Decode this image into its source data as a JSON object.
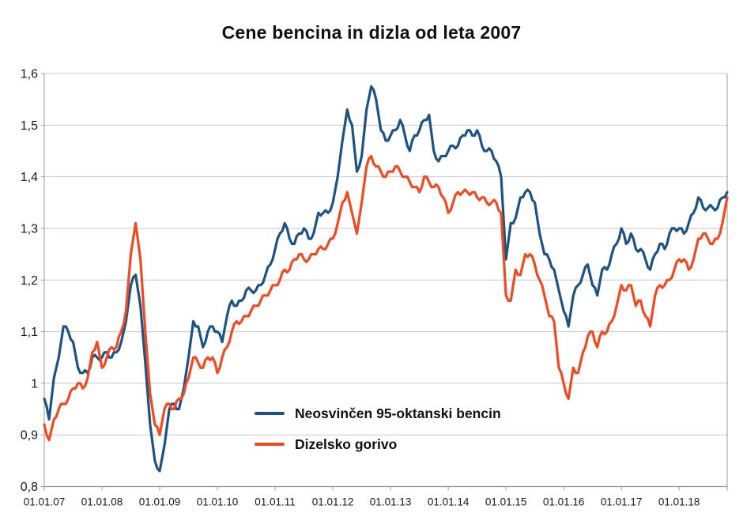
{
  "page": {
    "background": "#ffffff"
  },
  "chart_data": {
    "type": "line",
    "title": "Cene bencina in dizla od leta 2007",
    "xlabel": "",
    "ylabel": "",
    "ylim": [
      0.8,
      1.6
    ],
    "grid": true,
    "decimal_separator": ",",
    "x_start": "2007-01",
    "x_end": "2018-11",
    "x_interval": "month",
    "x_tick_labels": [
      "01.01.07",
      "01.01.08",
      "01.01.09",
      "01.01.10",
      "01.01.11",
      "01.01.12",
      "01.01.13",
      "01.01.14",
      "01.01.15",
      "01.01.16",
      "01.01.17",
      "01.01.18"
    ],
    "y_tick_labels": [
      "0,8",
      "0,9",
      "1",
      "1,1",
      "1,2",
      "1,3",
      "1,4",
      "1,5",
      "1,6"
    ],
    "y_tick_values": [
      0.8,
      0.9,
      1.0,
      1.1,
      1.2,
      1.3,
      1.4,
      1.5,
      1.6
    ],
    "legend_position": "inside-bottom-left",
    "colors": {
      "grid": "#c9c9c9",
      "axis": "#9a9a9a",
      "text": "#1a1a1a"
    },
    "series": [
      {
        "name": "Neosvinčen 95-oktanski bencin",
        "color": "#1d5384",
        "values": [
          0.97,
          0.93,
          1.01,
          1.05,
          1.11,
          1.1,
          1.08,
          1.03,
          1.02,
          1.02,
          1.05,
          1.05,
          1.05,
          1.06,
          1.05,
          1.06,
          1.08,
          1.12,
          1.19,
          1.21,
          1.15,
          1.04,
          0.92,
          0.85,
          0.83,
          0.88,
          0.95,
          0.96,
          0.95,
          0.99,
          1.05,
          1.12,
          1.11,
          1.07,
          1.1,
          1.11,
          1.1,
          1.08,
          1.13,
          1.16,
          1.15,
          1.16,
          1.18,
          1.18,
          1.18,
          1.19,
          1.21,
          1.23,
          1.26,
          1.29,
          1.31,
          1.28,
          1.27,
          1.29,
          1.3,
          1.28,
          1.29,
          1.33,
          1.33,
          1.33,
          1.35,
          1.4,
          1.47,
          1.53,
          1.5,
          1.41,
          1.44,
          1.53,
          1.575,
          1.55,
          1.49,
          1.47,
          1.48,
          1.49,
          1.51,
          1.48,
          1.45,
          1.48,
          1.49,
          1.51,
          1.52,
          1.45,
          1.43,
          1.44,
          1.45,
          1.46,
          1.46,
          1.48,
          1.49,
          1.48,
          1.49,
          1.46,
          1.45,
          1.45,
          1.43,
          1.4,
          1.24,
          1.31,
          1.32,
          1.36,
          1.37,
          1.37,
          1.35,
          1.29,
          1.25,
          1.24,
          1.22,
          1.18,
          1.14,
          1.11,
          1.17,
          1.19,
          1.21,
          1.23,
          1.19,
          1.17,
          1.22,
          1.22,
          1.25,
          1.27,
          1.3,
          1.27,
          1.29,
          1.26,
          1.26,
          1.24,
          1.22,
          1.25,
          1.27,
          1.26,
          1.29,
          1.3,
          1.3,
          1.29,
          1.31,
          1.33,
          1.36,
          1.34,
          1.34,
          1.34,
          1.34,
          1.36,
          1.37
        ]
      },
      {
        "name": "Dizelsko gorivo",
        "color": "#f04a22",
        "values": [
          0.92,
          0.89,
          0.93,
          0.95,
          0.96,
          0.97,
          0.99,
          1.0,
          0.99,
          1.01,
          1.06,
          1.08,
          1.03,
          1.05,
          1.07,
          1.07,
          1.1,
          1.14,
          1.25,
          1.31,
          1.24,
          1.1,
          0.98,
          0.92,
          0.9,
          0.95,
          0.96,
          0.95,
          0.97,
          0.98,
          1.01,
          1.05,
          1.04,
          1.03,
          1.05,
          1.05,
          1.02,
          1.05,
          1.07,
          1.1,
          1.12,
          1.12,
          1.13,
          1.14,
          1.15,
          1.16,
          1.17,
          1.18,
          1.19,
          1.2,
          1.22,
          1.22,
          1.24,
          1.25,
          1.24,
          1.24,
          1.25,
          1.26,
          1.26,
          1.27,
          1.28,
          1.31,
          1.35,
          1.37,
          1.33,
          1.29,
          1.35,
          1.42,
          1.44,
          1.42,
          1.41,
          1.4,
          1.41,
          1.42,
          1.41,
          1.4,
          1.39,
          1.38,
          1.37,
          1.4,
          1.39,
          1.38,
          1.38,
          1.36,
          1.33,
          1.35,
          1.37,
          1.37,
          1.37,
          1.37,
          1.36,
          1.36,
          1.35,
          1.35,
          1.35,
          1.33,
          1.17,
          1.16,
          1.22,
          1.21,
          1.25,
          1.25,
          1.23,
          1.2,
          1.17,
          1.13,
          1.12,
          1.03,
          1.0,
          0.97,
          1.03,
          1.02,
          1.06,
          1.09,
          1.1,
          1.07,
          1.1,
          1.1,
          1.12,
          1.15,
          1.19,
          1.18,
          1.19,
          1.15,
          1.16,
          1.13,
          1.11,
          1.17,
          1.19,
          1.19,
          1.2,
          1.22,
          1.24,
          1.24,
          1.22,
          1.24,
          1.28,
          1.29,
          1.28,
          1.27,
          1.28,
          1.31,
          1.36
        ]
      }
    ]
  }
}
